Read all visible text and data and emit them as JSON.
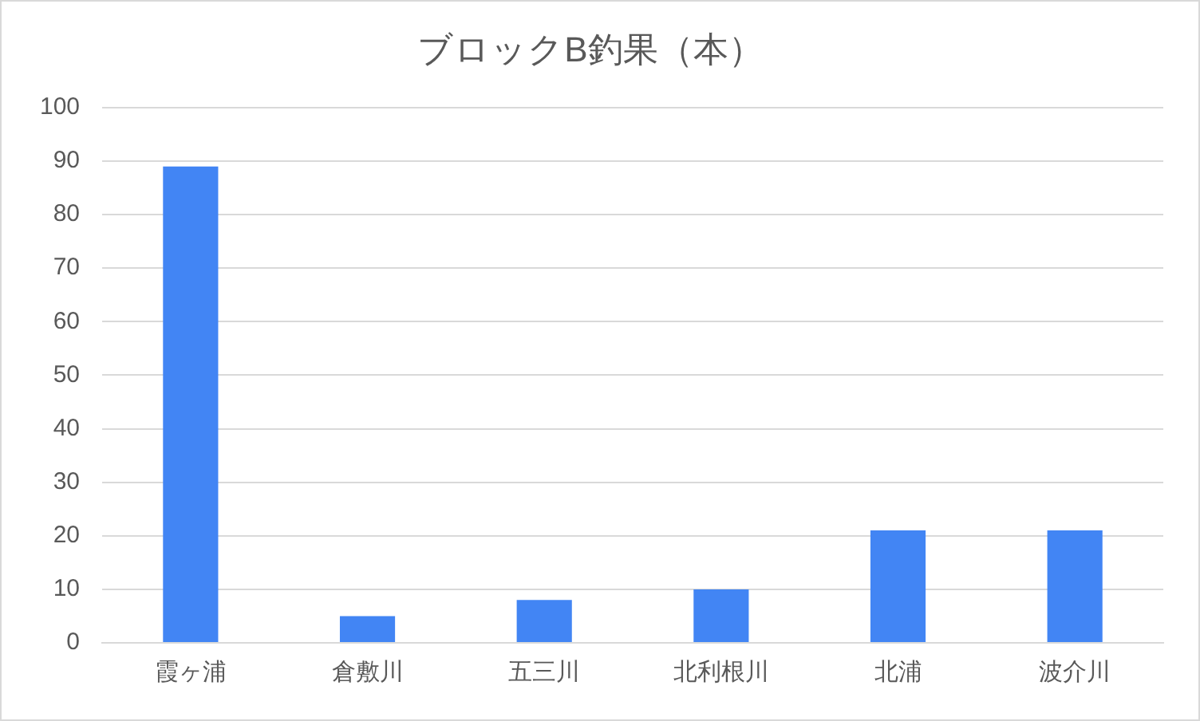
{
  "chart_data": {
    "type": "bar",
    "title": "ブロックB釣果（本）",
    "categories": [
      "霞ヶ浦",
      "倉敷川",
      "五三川",
      "北利根川",
      "北浦",
      "波介川"
    ],
    "values": [
      89,
      5,
      8,
      10,
      21,
      21
    ],
    "color": "#4285f4",
    "ylim": [
      0,
      100
    ],
    "yticks": [
      0,
      10,
      20,
      30,
      40,
      50,
      60,
      70,
      80,
      90,
      100
    ],
    "grid": "y",
    "legend": false
  }
}
